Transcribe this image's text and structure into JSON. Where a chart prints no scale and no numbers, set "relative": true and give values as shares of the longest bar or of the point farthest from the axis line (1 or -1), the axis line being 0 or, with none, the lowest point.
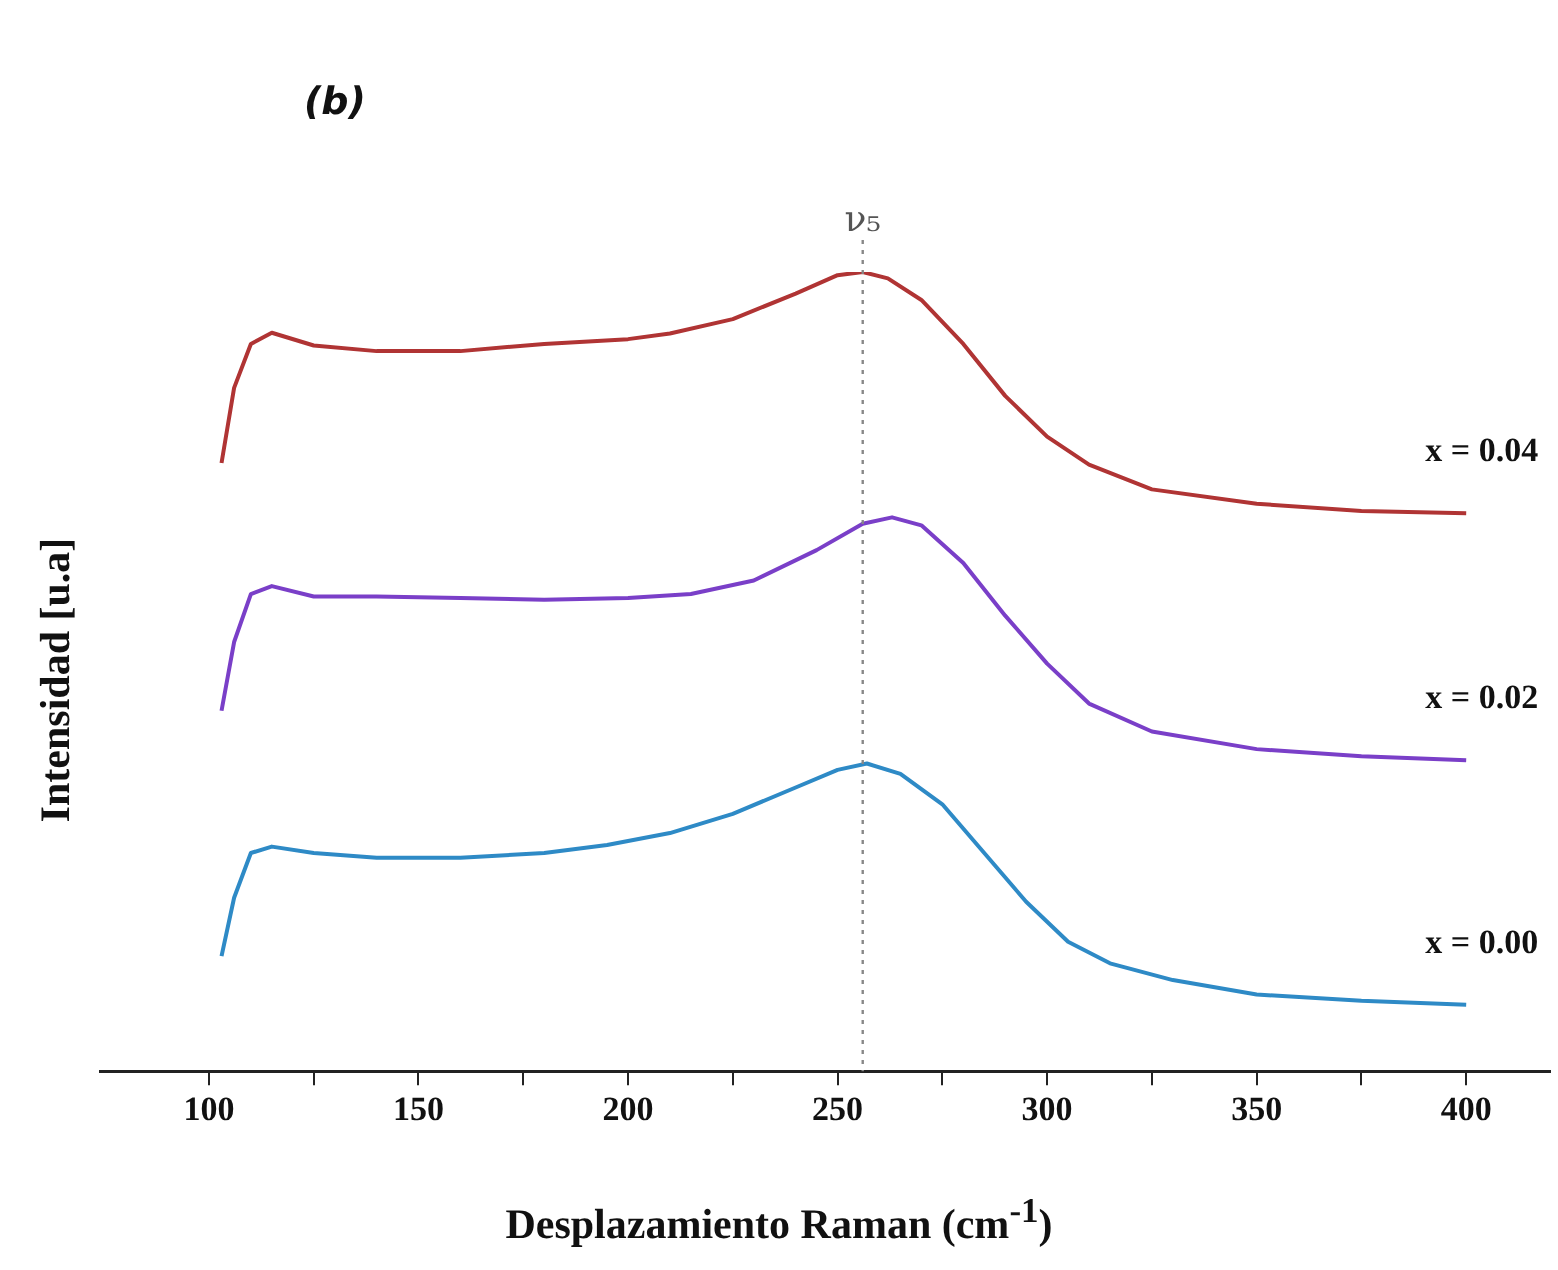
{
  "chart_data": {
    "type": "line",
    "title": "(b)",
    "xlabel": "Desplazamiento Raman (cm$^{-1}$)",
    "ylabel": "Intensidad [u.a]",
    "relative": true,
    "grid": false,
    "legend": false,
    "marker": "none",
    "line_style": "solid",
    "xlim": [
      74,
      420
    ],
    "xticks": [
      100,
      {
        "value": 125,
        "label": null
      },
      150,
      {
        "value": 175,
        "label": null
      },
      200,
      {
        "value": 225,
        "label": null
      },
      250,
      {
        "value": 275,
        "label": null
      },
      300,
      {
        "value": 325,
        "label": null
      },
      350,
      {
        "value": 375,
        "label": null
      },
      400
    ],
    "ref_lines": [
      {
        "axis": "x",
        "value": 256,
        "label": "ν₅",
        "color": "#888888",
        "line_style": "dotted"
      }
    ],
    "series": [
      {
        "name": "x = 0.04",
        "color": "#b03434",
        "x": [
          103,
          106,
          110,
          115,
          125,
          140,
          160,
          180,
          200,
          210,
          225,
          240,
          250,
          256,
          262,
          270,
          280,
          290,
          300,
          310,
          325,
          350,
          375,
          400
        ],
        "values": [
          0.761,
          0.855,
          0.91,
          0.924,
          0.908,
          0.901,
          0.901,
          0.91,
          0.916,
          0.923,
          0.941,
          0.973,
          0.996,
          1.0,
          0.992,
          0.965,
          0.91,
          0.845,
          0.794,
          0.759,
          0.728,
          0.71,
          0.701,
          0.698
        ]
      },
      {
        "name": "x = 0.02",
        "color": "#7a3fc8",
        "x": [
          103,
          106,
          110,
          115,
          125,
          140,
          160,
          180,
          200,
          215,
          230,
          245,
          256,
          263,
          270,
          280,
          290,
          300,
          310,
          325,
          350,
          375,
          400
        ],
        "values": [
          0.451,
          0.537,
          0.597,
          0.607,
          0.594,
          0.594,
          0.592,
          0.59,
          0.592,
          0.597,
          0.614,
          0.652,
          0.685,
          0.693,
          0.683,
          0.636,
          0.57,
          0.51,
          0.46,
          0.425,
          0.403,
          0.394,
          0.389
        ]
      },
      {
        "name": "x = 0.00",
        "color": "#2e8ac6",
        "x": [
          103,
          106,
          110,
          115,
          125,
          140,
          160,
          180,
          195,
          210,
          225,
          240,
          250,
          257,
          265,
          275,
          285,
          295,
          305,
          315,
          330,
          350,
          375,
          400
        ],
        "values": [
          0.144,
          0.217,
          0.273,
          0.281,
          0.273,
          0.267,
          0.267,
          0.273,
          0.283,
          0.298,
          0.322,
          0.355,
          0.377,
          0.385,
          0.372,
          0.334,
          0.273,
          0.212,
          0.162,
          0.135,
          0.114,
          0.096,
          0.088,
          0.083
        ]
      }
    ]
  }
}
